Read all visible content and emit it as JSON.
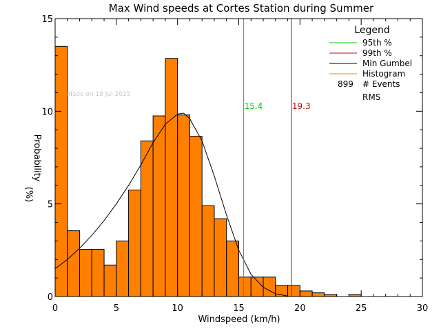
{
  "chart_data": {
    "type": "bar",
    "title": "Max Wind speeds at Cortes Station during Summer",
    "xlabel": "Windspeed (km/h)",
    "ylabel_top": "Probability",
    "ylabel_bottom": "(%)",
    "xlim": [
      0,
      30
    ],
    "ylim": [
      0,
      15
    ],
    "x_ticks": [
      "0",
      "5",
      "10",
      "15",
      "20",
      "25",
      "30"
    ],
    "y_ticks": [
      "0",
      "5",
      "10",
      "15"
    ],
    "watermark": "Made on 18 Jul 2025",
    "histogram": {
      "color": "#ff7f00",
      "bin_width": 1,
      "bin_starts": [
        0,
        1,
        2,
        3,
        4,
        5,
        6,
        7,
        8,
        9,
        10,
        11,
        12,
        13,
        14,
        15,
        16,
        17,
        18,
        19,
        20,
        21,
        22,
        23,
        24,
        25
      ],
      "values": [
        13.5,
        3.55,
        2.55,
        2.55,
        1.7,
        3.0,
        5.75,
        8.4,
        9.75,
        12.85,
        9.8,
        8.65,
        4.9,
        4.2,
        3.0,
        1.05,
        1.05,
        1.05,
        0.6,
        0.6,
        0.3,
        0.2,
        0.1,
        0.0,
        0.1,
        0.0
      ]
    },
    "gumbel_curve": {
      "color": "#000000",
      "x": [
        0,
        1,
        2,
        3,
        4,
        5,
        6,
        7,
        8,
        9,
        10,
        10.5,
        11,
        12,
        13,
        14,
        15,
        16,
        17,
        18,
        19
      ],
      "y": [
        1.5,
        2.0,
        2.6,
        3.3,
        4.1,
        5.0,
        6.0,
        7.1,
        8.3,
        9.3,
        9.85,
        9.9,
        9.6,
        8.4,
        6.5,
        4.4,
        2.5,
        1.2,
        0.5,
        0.15,
        0.03
      ]
    },
    "markers": [
      {
        "x": 15.4,
        "label": "15.4",
        "color": "#00cc00"
      },
      {
        "x": 19.3,
        "label": "19.3",
        "color": "#cc0000"
      }
    ],
    "legend": {
      "title": "Legend",
      "placement": "top-right",
      "entries": [
        {
          "label": "95th %",
          "color": "#00cc00"
        },
        {
          "label": "99th %",
          "color": "#cc0000"
        },
        {
          "label": "Min Gumbel",
          "color": "#000000"
        },
        {
          "label": "Histogram",
          "color": "#ff7f00"
        }
      ],
      "events_count": "899",
      "events_label": "# Events",
      "rms_label": "RMS"
    }
  }
}
